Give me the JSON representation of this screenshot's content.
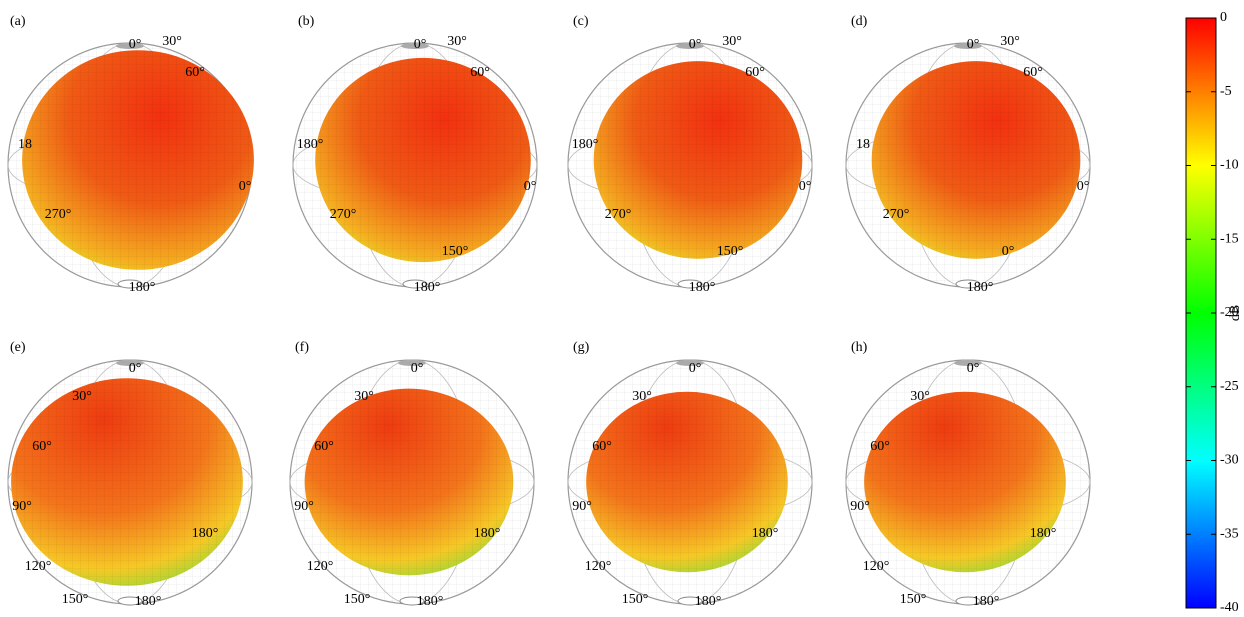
{
  "panels": [
    {
      "label": "(a)",
      "angles": [
        "0°",
        "30°",
        "60°",
        "18",
        "0°",
        "270°",
        "180°"
      ]
    },
    {
      "label": "(b)",
      "angles": [
        "0°",
        "30°",
        "60°",
        "180°",
        "0°",
        "270°",
        "150°",
        "180°"
      ]
    },
    {
      "label": "(c)",
      "angles": [
        "0°",
        "30°",
        "60°",
        "180°",
        "0°",
        "270°",
        "150°",
        "180°"
      ]
    },
    {
      "label": "(d)",
      "angles": [
        "0°",
        "30°",
        "60°",
        "18",
        "0°",
        "270°",
        "0°",
        "180°"
      ]
    },
    {
      "label": "(e)",
      "angles": [
        "0°",
        "30°",
        "60°",
        "90°",
        "180°",
        "120°",
        "150°",
        "180°"
      ]
    },
    {
      "label": "(f)",
      "angles": [
        "0°",
        "30°",
        "60°",
        "90°",
        "180°",
        "120°",
        "150°",
        "180°"
      ]
    },
    {
      "label": "(g)",
      "angles": [
        "0°",
        "30°",
        "60°",
        "90°",
        "180°",
        "120°",
        "150°",
        "180°"
      ]
    },
    {
      "label": "(h)",
      "angles": [
        "0°",
        "30°",
        "60°",
        "90°",
        "180°",
        "120°",
        "150°",
        "180°"
      ]
    }
  ],
  "colorbar": {
    "label": "dB",
    "lim": [
      -40,
      0
    ],
    "ticks": [
      0,
      -5,
      -10,
      -15,
      -20,
      -25,
      -30,
      -35,
      -40
    ]
  }
}
